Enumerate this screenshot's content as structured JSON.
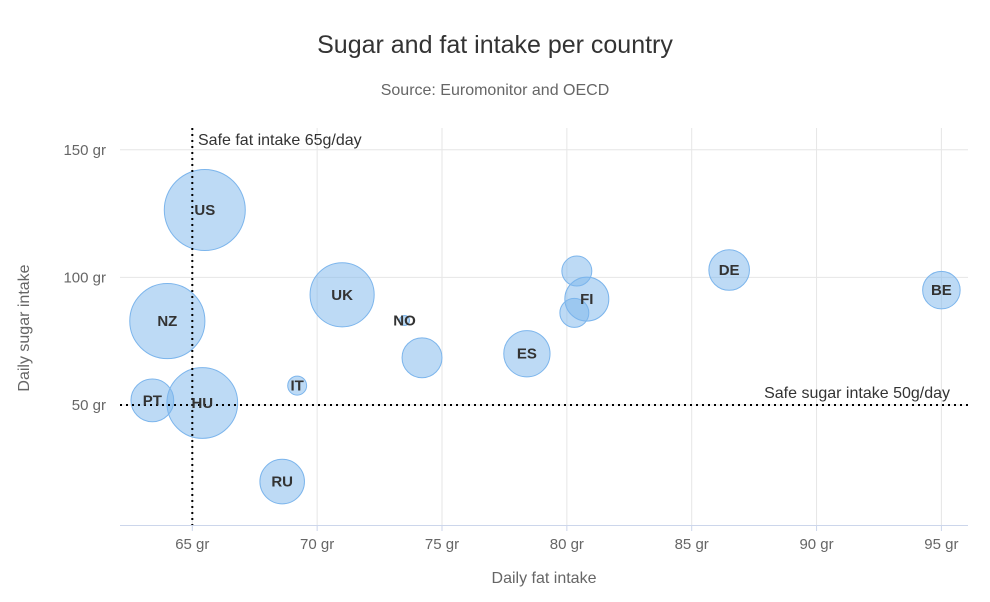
{
  "chart": {
    "title": "Sugar and fat intake per country",
    "subtitle": "Source: Euromonitor and OECD",
    "xaxis_title": "Daily fat intake",
    "yaxis_title": "Daily sugar intake"
  },
  "annotations": {
    "fat_line_label": "Safe fat intake 65g/day",
    "sugar_line_label": "Safe sugar intake 50g/day"
  },
  "chart_data": {
    "type": "scatter",
    "subtype": "bubble",
    "title": "Sugar and fat intake per country",
    "subtitle": "Source: Euromonitor and OECD",
    "xlabel": "Daily fat intake",
    "ylabel": "Daily sugar intake",
    "unit": "gr",
    "grid": true,
    "xlim": [
      62,
      96.2
    ],
    "ylim": [
      3,
      159
    ],
    "x_ticks": [
      {
        "value": 65,
        "label": "65 gr"
      },
      {
        "value": 70,
        "label": "70 gr"
      },
      {
        "value": 75,
        "label": "75 gr"
      },
      {
        "value": 80,
        "label": "80 gr"
      },
      {
        "value": 85,
        "label": "85 gr"
      },
      {
        "value": 90,
        "label": "90 gr"
      },
      {
        "value": 95,
        "label": "95 gr"
      }
    ],
    "y_ticks": [
      {
        "value": 50,
        "label": "50 gr"
      },
      {
        "value": 100,
        "label": "100 gr"
      },
      {
        "value": 150,
        "label": "150 gr"
      }
    ],
    "points": [
      {
        "label": "US",
        "x": 65.5,
        "y": 126.4,
        "z": 35.3
      },
      {
        "label": "NZ",
        "x": 64.0,
        "y": 82.9,
        "z": 31.3
      },
      {
        "label": "HU",
        "x": 65.4,
        "y": 50.8,
        "z": 28.5
      },
      {
        "label": "UK",
        "x": 71.0,
        "y": 93.2,
        "z": 24.7
      },
      {
        "label": "ES",
        "x": 78.4,
        "y": 70.1,
        "z": 16.6
      },
      {
        "label": "RU",
        "x": 68.6,
        "y": 20.0,
        "z": 16.0
      },
      {
        "label": "FI",
        "x": 80.8,
        "y": 91.5,
        "z": 15.8
      },
      {
        "label": "PT",
        "x": 63.4,
        "y": 51.8,
        "z": 15.4
      },
      {
        "label": "DE",
        "x": 86.5,
        "y": 102.9,
        "z": 14.7
      },
      {
        "label": "",
        "x": 74.2,
        "y": 68.5,
        "z": 14.5
      },
      {
        "label": "BE",
        "x": 95.0,
        "y": 95.0,
        "z": 13.8
      },
      {
        "label": "",
        "x": 80.4,
        "y": 102.5,
        "z": 12.0
      },
      {
        "label": "",
        "x": 80.3,
        "y": 86.1,
        "z": 11.8
      },
      {
        "label": "IT",
        "x": 69.2,
        "y": 57.6,
        "z": 10.4
      },
      {
        "label": "NO",
        "x": 73.5,
        "y": 83.1,
        "z": 10.0
      }
    ],
    "reference_lines": [
      {
        "axis": "x",
        "value": 65,
        "label": "Safe fat intake 65g/day"
      },
      {
        "axis": "y",
        "value": 50,
        "label": "Safe sugar intake 50g/day"
      }
    ],
    "legend_position": "none"
  },
  "colors": {
    "title": "#333333",
    "subtitle": "#666666",
    "axis_title": "#666666",
    "tick_label": "#666666",
    "grid_line": "#e6e6e6",
    "axis_line": "#ccd6eb",
    "bubble_fill": "rgba(124,181,236,0.5)",
    "bubble_stroke": "#7cb5ec",
    "bubble_label": "#333333",
    "reference_line": "#000000",
    "reference_label": "#333333",
    "background": "#ffffff"
  }
}
